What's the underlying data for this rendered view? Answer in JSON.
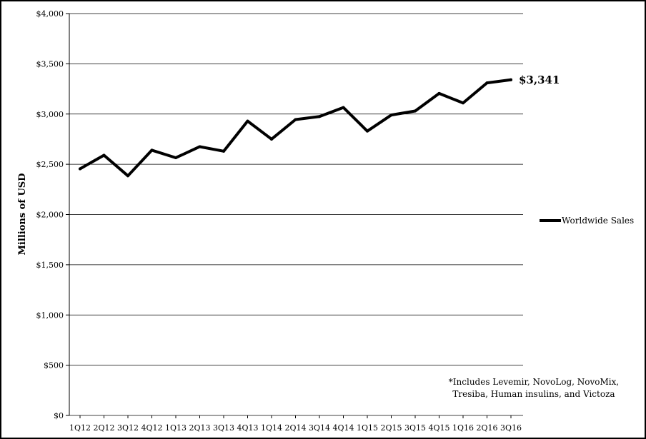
{
  "chart_data": {
    "type": "line",
    "title": "",
    "ylabel": "Millions of USD",
    "xlabel": "",
    "ylim": [
      0,
      4000
    ],
    "yticks": [
      0,
      500,
      1000,
      1500,
      2000,
      2500,
      3000,
      3500,
      4000
    ],
    "ytick_labels": [
      "$0",
      "$500",
      "$1,000",
      "$1,500",
      "$2,000",
      "$2,500",
      "$3,000",
      "$3,500",
      "$4,000"
    ],
    "grid": "horizontal",
    "legend_position": "right",
    "line_color": "#000000",
    "categories": [
      "1Q12",
      "2Q12",
      "3Q12",
      "4Q12",
      "1Q13",
      "2Q13",
      "3Q13",
      "4Q13",
      "1Q14",
      "2Q14",
      "3Q14",
      "4Q14",
      "1Q15",
      "2Q15",
      "3Q15",
      "4Q15",
      "1Q16",
      "2Q16",
      "3Q16"
    ],
    "series": [
      {
        "name": "Worldwide Sales",
        "values": [
          2455,
          2590,
          2385,
          2640,
          2565,
          2675,
          2630,
          2930,
          2750,
          2945,
          2975,
          3065,
          2830,
          2990,
          3030,
          3205,
          3110,
          3310,
          3341
        ]
      }
    ],
    "end_label": "$3,341",
    "footnote": [
      "*Includes Levemir, NovoLog, NovoMix,",
      "Tresiba, Human insulins, and Victoza"
    ]
  }
}
